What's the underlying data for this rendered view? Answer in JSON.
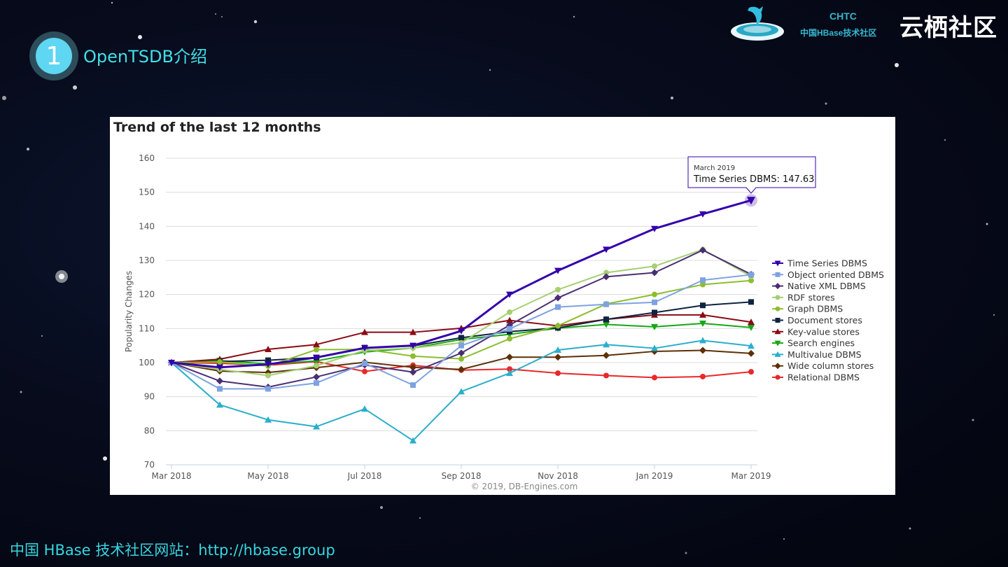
{
  "header": {
    "section_number": "1",
    "section_title": "OpenTSDB介绍"
  },
  "logo": {
    "chtc": "CHTC",
    "community": "中国HBase技术社区",
    "yunqi": "云栖社区"
  },
  "footer": {
    "text": "中国 HBase 技术社区网站：http://hbase.group"
  },
  "tooltip": {
    "date": "March 2019",
    "text": "Time Series DBMS: 147.63"
  },
  "chart_data": {
    "type": "line",
    "title": "Trend of the last 12 months",
    "xlabel": "",
    "ylabel": "Popularity Changes",
    "ylim": [
      70,
      160
    ],
    "yticks": [
      "70",
      "80",
      "90",
      "100",
      "110",
      "120",
      "130",
      "140",
      "150",
      "160"
    ],
    "x": [
      "Mar 2018",
      "Apr 2018",
      "May 2018",
      "Jun 2018",
      "Jul 2018",
      "Aug 2018",
      "Sep 2018",
      "Oct 2018",
      "Nov 2018",
      "Dec 2018",
      "Jan 2019",
      "Feb 2019",
      "Mar 2019"
    ],
    "xtick_labels": [
      "Mar 2018",
      "May 2018",
      "Jul 2018",
      "Sep 2018",
      "Nov 2018",
      "Jan 2019",
      "Mar 2019"
    ],
    "grid": true,
    "legend_position": "right",
    "credit": "© 2019, DB-Engines.com",
    "series": [
      {
        "name": "Time Series DBMS",
        "color": "#3300aa",
        "marker": "triangle-down",
        "width": 3,
        "values": [
          100,
          98.6,
          99.5,
          101.5,
          104.3,
          105,
          109.3,
          120,
          127,
          133.2,
          139.3,
          143.6,
          147.63
        ]
      },
      {
        "name": "Object oriented DBMS",
        "color": "#7ea2e0",
        "marker": "square",
        "width": 2,
        "values": [
          100,
          92.3,
          92.3,
          94,
          99.8,
          93.4,
          105,
          109.9,
          116.3,
          117.1,
          117.7,
          124.2,
          125.8
        ]
      },
      {
        "name": "Native XML DBMS",
        "color": "#4a2e73",
        "marker": "diamond",
        "width": 2,
        "values": [
          100,
          94.6,
          92.8,
          95.8,
          99.3,
          97.2,
          102.8,
          111,
          119,
          125.2,
          126.4,
          133,
          125.9
        ]
      },
      {
        "name": "RDF stores",
        "color": "#a6cf73",
        "marker": "circle",
        "width": 2,
        "values": [
          100,
          98,
          96.2,
          99.1,
          103.6,
          104.3,
          105.8,
          114.8,
          121.4,
          126.4,
          128.3,
          133.2,
          125.3
        ]
      },
      {
        "name": "Graph DBMS",
        "color": "#8dbd2f",
        "marker": "circle",
        "width": 2,
        "values": [
          100,
          100.2,
          99,
          103.8,
          103.9,
          101.9,
          101.1,
          107,
          110.8,
          117.2,
          120,
          122.9,
          124.1
        ]
      },
      {
        "name": "Document stores",
        "color": "#0f2440",
        "marker": "square",
        "width": 2,
        "values": [
          100,
          100.3,
          100.7,
          101.5,
          104.4,
          104.9,
          107.3,
          109.1,
          110.2,
          112.7,
          114.7,
          116.8,
          117.8
        ]
      },
      {
        "name": "Key-value stores",
        "color": "#8b0a14",
        "marker": "triangle",
        "width": 2,
        "values": [
          100,
          101,
          103.9,
          105.3,
          108.9,
          108.9,
          110.1,
          112.4,
          110.8,
          112.7,
          114,
          114,
          111.9
        ]
      },
      {
        "name": "Search engines",
        "color": "#17a817",
        "marker": "triangle-down",
        "width": 2,
        "values": [
          100,
          100.6,
          99.6,
          100.5,
          103.1,
          104.3,
          106.8,
          108.3,
          110.1,
          111.2,
          110.5,
          111.5,
          110.3
        ]
      },
      {
        "name": "Multivalue DBMS",
        "color": "#2aaecb",
        "marker": "triangle",
        "width": 2,
        "values": [
          100,
          87.6,
          83.2,
          81.2,
          86.4,
          77.1,
          91.5,
          96.9,
          103.7,
          105.3,
          104.2,
          106.5,
          104.9
        ]
      },
      {
        "name": "Wide column stores",
        "color": "#5e3008",
        "marker": "diamond",
        "width": 2,
        "values": [
          100,
          97.5,
          97.1,
          98.5,
          100.1,
          98.6,
          98,
          101.6,
          101.6,
          102.1,
          103.3,
          103.6,
          102.7
        ]
      },
      {
        "name": "Relational DBMS",
        "color": "#e8282b",
        "marker": "circle",
        "width": 2,
        "values": [
          100,
          99.8,
          99.2,
          100.3,
          97.4,
          99.2,
          97.8,
          98.1,
          96.9,
          96.2,
          95.6,
          95.9,
          97.3
        ]
      }
    ]
  }
}
